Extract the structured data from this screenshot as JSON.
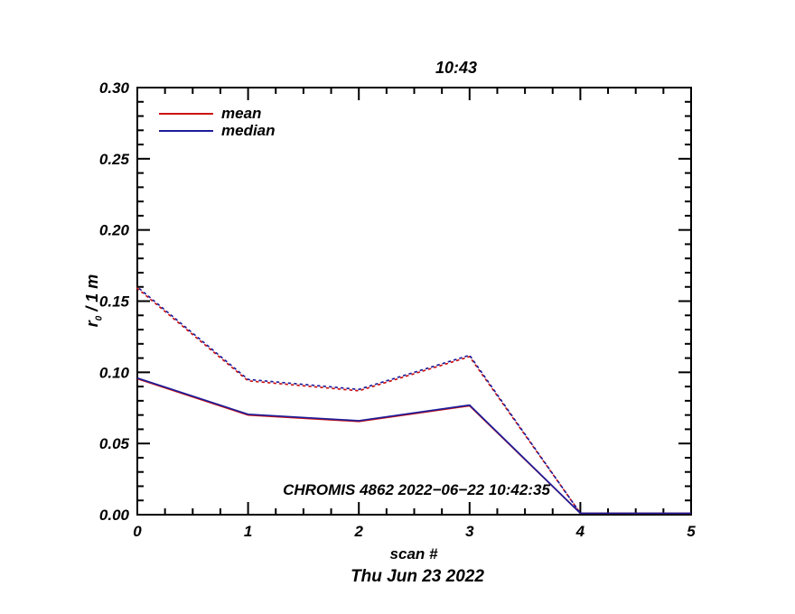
{
  "page": {
    "background": "#ffffff"
  },
  "chart_data": {
    "type": "line",
    "title": "10:43",
    "xlabel": "scan #",
    "ylabel": "r0 / 1 m",
    "ylabel_parts": {
      "base": "r",
      "sub": "0",
      "rest": " / 1 m"
    },
    "footer_date": "Thu Jun 23 2022",
    "annotation": "CHROMIS 4862 2022−06−22 10:42:35",
    "xlim": [
      0,
      5
    ],
    "ylim": [
      0,
      0.3
    ],
    "xticks": [
      0,
      1,
      2,
      3,
      4,
      5
    ],
    "xtick_labels": [
      "0",
      "1",
      "2",
      "3",
      "4",
      "5"
    ],
    "yticks": [
      0,
      0.05,
      0.1,
      0.15,
      0.2,
      0.25,
      0.3
    ],
    "ytick_labels": [
      "0.00",
      "0.05",
      "0.10",
      "0.15",
      "0.20",
      "0.25",
      "0.30"
    ],
    "x_minor_step": 0.25,
    "y_minor_step": 0.01,
    "grid": false,
    "legend_position": "top-left-inside",
    "axis_color": "#000000",
    "text_color": "#000000",
    "x": [
      0,
      1,
      2,
      3,
      4,
      5
    ],
    "series": [
      {
        "name": "mean-dotted",
        "color": "#cc1212",
        "style": "dotted",
        "values": [
          0.159,
          0.094,
          0.087,
          0.111,
          0.001,
          0.001
        ]
      },
      {
        "name": "median-dotted",
        "color": "#1d1d9a",
        "style": "dotted",
        "values": [
          0.16,
          0.095,
          0.088,
          0.112,
          0.001,
          0.001
        ]
      },
      {
        "name": "mean",
        "color": "#cc1212",
        "style": "solid",
        "values": [
          0.0955,
          0.07,
          0.0655,
          0.0765,
          0.001,
          0.001
        ]
      },
      {
        "name": "median",
        "color": "#1d1d9a",
        "style": "solid",
        "values": [
          0.096,
          0.0705,
          0.066,
          0.077,
          0.001,
          0.001
        ]
      }
    ],
    "legend": [
      {
        "label": "mean",
        "color": "#cc1212"
      },
      {
        "label": "median",
        "color": "#1d1d9a"
      }
    ]
  }
}
